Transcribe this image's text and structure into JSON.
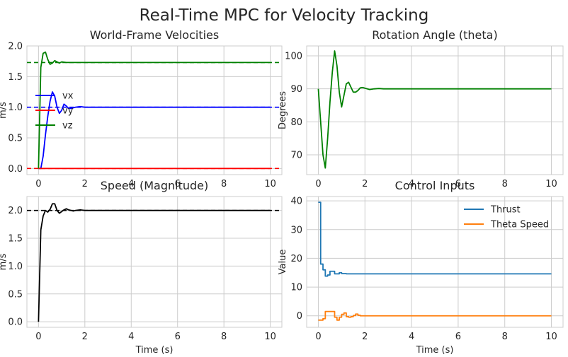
{
  "figure": {
    "title": "Real-Time MPC for Velocity Tracking"
  },
  "colors": {
    "vx": "#0000ff",
    "vy": "#ff0000",
    "vz": "#008000",
    "speed": "#000000",
    "theta": "#008000",
    "thrust": "#1f77b4",
    "theta_speed": "#ff7f0e"
  },
  "chart_data": [
    {
      "id": "velocities",
      "type": "line",
      "title": "World-Frame Velocities",
      "xlabel": "",
      "ylabel": "m/s",
      "xlim": [
        -0.5,
        10.5
      ],
      "ylim": [
        -0.1,
        2.0
      ],
      "xticks": [
        0,
        2,
        4,
        6,
        8,
        10
      ],
      "yticks": [
        0.0,
        0.5,
        1.0,
        1.5,
        2.0
      ],
      "ytick_labels": [
        "0.0",
        "0.5",
        "1.0",
        "1.5",
        "2.0"
      ],
      "grid": true,
      "legend": "center-left",
      "series": [
        {
          "name": "vx",
          "color": "#0000ff",
          "x": [
            0,
            0.1,
            0.2,
            0.3,
            0.4,
            0.5,
            0.6,
            0.7,
            0.8,
            0.9,
            1.0,
            1.1,
            1.2,
            1.3,
            1.4,
            1.6,
            1.8,
            2.0,
            3.0,
            10.0
          ],
          "y": [
            0,
            0.0,
            0.2,
            0.55,
            0.85,
            1.1,
            1.25,
            1.18,
            1.0,
            0.9,
            0.95,
            1.05,
            1.02,
            0.98,
            0.98,
            1.0,
            1.01,
            1.0,
            1.0,
            1.0
          ]
        },
        {
          "name": "vy",
          "color": "#ff0000",
          "x": [
            0,
            10.0
          ],
          "y": [
            0.0,
            0.0
          ]
        },
        {
          "name": "vz",
          "color": "#008000",
          "x": [
            0,
            0.1,
            0.2,
            0.3,
            0.4,
            0.5,
            0.6,
            0.7,
            0.8,
            0.9,
            1.0,
            1.2,
            1.5,
            2.0,
            10.0
          ],
          "y": [
            0,
            1.65,
            1.88,
            1.9,
            1.78,
            1.7,
            1.72,
            1.76,
            1.74,
            1.72,
            1.74,
            1.73,
            1.73,
            1.73,
            1.73
          ]
        }
      ],
      "reference_lines": [
        {
          "y": 1.73,
          "color": "#008000",
          "style": "dashed"
        },
        {
          "y": 1.0,
          "color": "#0000ff",
          "style": "dashed"
        },
        {
          "y": 0.0,
          "color": "#ff0000",
          "style": "dashed"
        }
      ]
    },
    {
      "id": "theta",
      "type": "line",
      "title": "Rotation Angle (theta)",
      "xlabel": "",
      "ylabel": "Degrees",
      "xlim": [
        -0.5,
        10.5
      ],
      "ylim": [
        64,
        103
      ],
      "xticks": [
        0,
        2,
        4,
        6,
        8,
        10
      ],
      "yticks": [
        70,
        80,
        90,
        100
      ],
      "ytick_labels": [
        "70",
        "80",
        "90",
        "100"
      ],
      "grid": true,
      "series": [
        {
          "name": "",
          "color": "#008000",
          "x": [
            0,
            0.1,
            0.2,
            0.3,
            0.4,
            0.5,
            0.6,
            0.7,
            0.8,
            0.9,
            1.0,
            1.1,
            1.2,
            1.3,
            1.4,
            1.5,
            1.6,
            1.7,
            1.8,
            1.9,
            2.0,
            2.2,
            2.4,
            2.6,
            2.8,
            3.0,
            10.0
          ],
          "y": [
            90,
            80,
            70,
            66,
            75,
            86,
            95,
            101.5,
            97,
            89,
            84.5,
            88,
            91.5,
            92,
            90.5,
            89,
            89,
            89.5,
            90.3,
            90.4,
            90.2,
            89.8,
            90.0,
            90.1,
            90.0,
            90.0,
            90.0
          ]
        }
      ]
    },
    {
      "id": "speed",
      "type": "line",
      "title": "Speed (Magnitude)",
      "xlabel": "Time (s)",
      "ylabel": "m/s",
      "xlim": [
        -0.5,
        10.5
      ],
      "ylim": [
        -0.1,
        2.25
      ],
      "xticks": [
        0,
        2,
        4,
        6,
        8,
        10
      ],
      "yticks": [
        0.0,
        0.5,
        1.0,
        1.5,
        2.0
      ],
      "ytick_labels": [
        "0.0",
        "0.5",
        "1.0",
        "1.5",
        "2.0"
      ],
      "grid": true,
      "series": [
        {
          "name": "",
          "color": "#000000",
          "x": [
            0,
            0.1,
            0.2,
            0.3,
            0.4,
            0.5,
            0.6,
            0.7,
            0.8,
            0.9,
            1.0,
            1.1,
            1.2,
            1.3,
            1.4,
            1.5,
            1.6,
            1.8,
            2.0,
            10.0
          ],
          "y": [
            0,
            1.65,
            1.9,
            2.0,
            1.97,
            2.02,
            2.12,
            2.12,
            2.0,
            1.95,
            1.98,
            2.01,
            2.03,
            2.01,
            2.0,
            1.99,
            2.0,
            2.01,
            2.0,
            2.0
          ]
        }
      ],
      "reference_lines": [
        {
          "y": 2.0,
          "color": "#000000",
          "style": "dashed"
        }
      ]
    },
    {
      "id": "control",
      "type": "line",
      "title": "Control Inputs",
      "xlabel": "Time (s)",
      "ylabel": "Value",
      "xlim": [
        -0.5,
        10.5
      ],
      "ylim": [
        -4,
        41.5
      ],
      "xticks": [
        0,
        2,
        4,
        6,
        8,
        10
      ],
      "yticks": [
        0,
        10,
        20,
        30,
        40
      ],
      "ytick_labels": [
        "0",
        "10",
        "20",
        "30",
        "40"
      ],
      "grid": true,
      "legend": "top-right",
      "series": [
        {
          "name": "Thrust",
          "color": "#1f77b4",
          "step": true,
          "x": [
            0,
            0.1,
            0.2,
            0.3,
            0.4,
            0.5,
            0.6,
            0.7,
            0.8,
            0.9,
            1.0,
            1.1,
            1.2,
            1.4,
            1.6,
            10.0
          ],
          "y": [
            39.5,
            18,
            16,
            13.8,
            14.2,
            15.5,
            15.5,
            14.6,
            14.6,
            15.0,
            14.7,
            14.7,
            14.6,
            14.6,
            14.6,
            14.6
          ]
        },
        {
          "name": "Theta Speed",
          "color": "#ff7f0e",
          "step": true,
          "x": [
            0,
            0.2,
            0.3,
            0.4,
            0.5,
            0.6,
            0.7,
            0.8,
            0.9,
            1.0,
            1.1,
            1.2,
            1.3,
            1.4,
            1.5,
            1.6,
            1.7,
            1.8,
            10.0
          ],
          "y": [
            -1.5,
            -1.0,
            1.5,
            1.5,
            1.5,
            1.5,
            -0.5,
            -1.5,
            -0.5,
            0.5,
            1.0,
            -0.3,
            -0.5,
            -0.3,
            0.1,
            0.6,
            0.2,
            0.0,
            0.0
          ]
        }
      ]
    }
  ]
}
